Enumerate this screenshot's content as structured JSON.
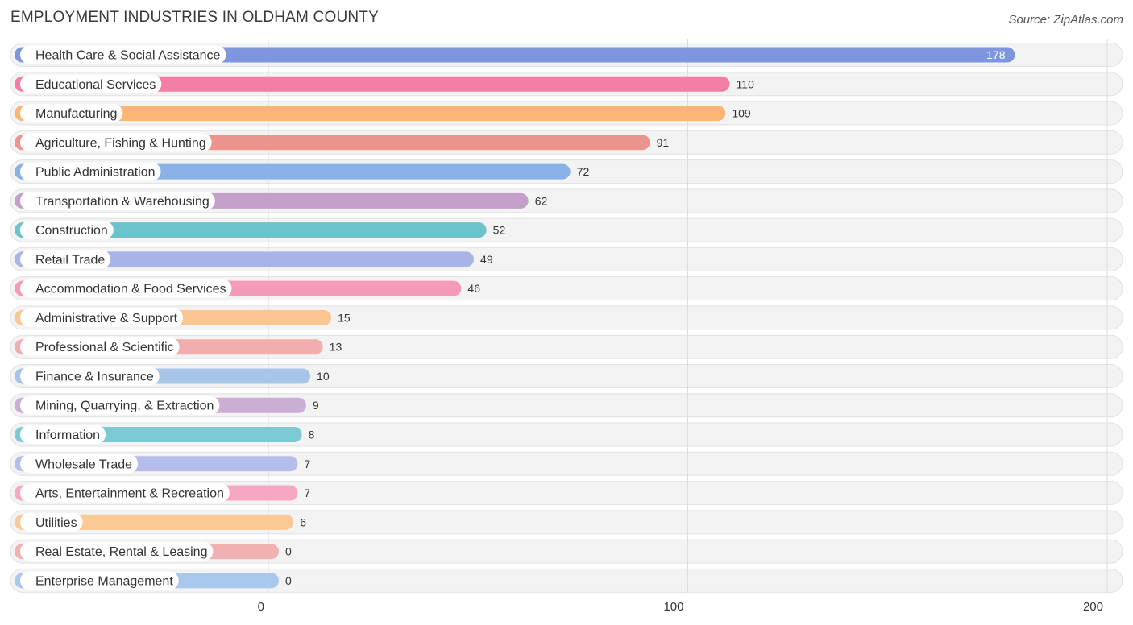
{
  "chart_data": {
    "type": "bar",
    "orientation": "horizontal",
    "title": "EMPLOYMENT INDUSTRIES IN OLDHAM COUNTY",
    "source": "Source: ZipAtlas.com",
    "xlabel": "",
    "ylabel": "",
    "xlim": [
      0,
      200
    ],
    "ticks": [
      {
        "value": 0,
        "label": "0"
      },
      {
        "value": 100,
        "label": "100"
      },
      {
        "value": 200,
        "label": "200"
      }
    ],
    "grid": true,
    "categories": [
      "Health Care & Social Assistance",
      "Educational Services",
      "Manufacturing",
      "Agriculture, Fishing & Hunting",
      "Public Administration",
      "Transportation & Warehousing",
      "Construction",
      "Retail Trade",
      "Accommodation & Food Services",
      "Administrative & Support",
      "Professional & Scientific",
      "Finance & Insurance",
      "Mining, Quarrying, & Extraction",
      "Information",
      "Wholesale Trade",
      "Arts, Entertainment & Recreation",
      "Utilities",
      "Real Estate, Rental & Leasing",
      "Enterprise Management"
    ],
    "values": [
      178,
      110,
      109,
      91,
      72,
      62,
      52,
      49,
      46,
      15,
      13,
      10,
      9,
      8,
      7,
      7,
      6,
      0,
      0
    ],
    "value_labels": [
      "178",
      "110",
      "109",
      "91",
      "72",
      "62",
      "52",
      "49",
      "46",
      "15",
      "13",
      "10",
      "9",
      "8",
      "7",
      "7",
      "6",
      "0",
      "0"
    ],
    "colors": [
      "#7f95de",
      "#f27ea6",
      "#fbb574",
      "#ec958f",
      "#8bb2e6",
      "#c49fca",
      "#6cc3cb",
      "#a9b3e6",
      "#f59ab9",
      "#fbc692",
      "#f2aeae",
      "#a7c5ea",
      "#cbaed4",
      "#7ccad3",
      "#b5bdeb",
      "#f7a7c3",
      "#fbc994",
      "#f1b1b1",
      "#a9c8ee"
    ]
  }
}
